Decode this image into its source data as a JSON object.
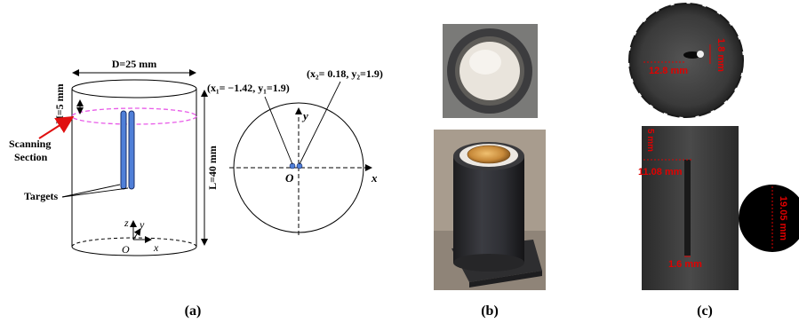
{
  "panel_a": {
    "caption": "(a)",
    "diameter_label": "D=25 mm",
    "height_label": "H=5 mm",
    "length_label": "L=40 mm",
    "scanning_label_line1": "Scanning",
    "scanning_label_line2": "Section",
    "targets_label": "Targets",
    "axis_z": "z",
    "axis_y": "y",
    "axis_x": "x",
    "origin": "O",
    "target1_coords": "(x₁= −1.42, y₁=1.9)",
    "target2_coords": "(x₂= 0.18, y₂=1.9)",
    "circle_axis_y": "y",
    "circle_axis_x": "x",
    "circle_origin": "O",
    "target_color": "#4f7fd8",
    "section_color": "#e85ae8",
    "arrow_color": "#e01010"
  },
  "panel_b": {
    "caption": "(b)"
  },
  "panel_c": {
    "caption": "(c)",
    "top_width_label": "12.8 mm",
    "top_height_label": "1.8 mm",
    "side_depth_label": "5 mm",
    "side_width_label": "11.08 mm",
    "side_slot_label": "1.6 mm",
    "coin_label": "19.05 mm",
    "annotation_color": "#e00000"
  }
}
